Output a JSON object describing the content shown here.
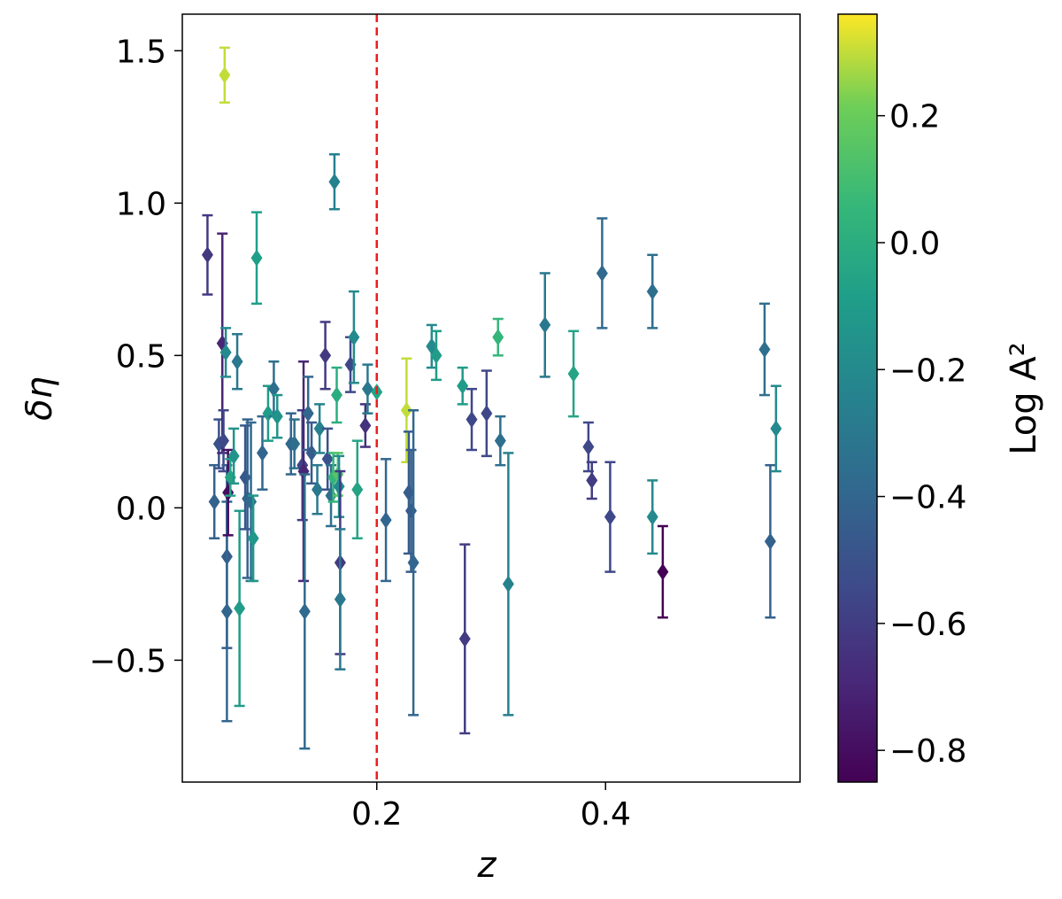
{
  "chart_data": {
    "type": "scatter",
    "title": "",
    "xlabel": "z",
    "ylabel": "δη",
    "xlim": [
      0.03,
      0.57
    ],
    "ylim": [
      -0.9,
      1.62
    ],
    "xticks": [
      0.2,
      0.4
    ],
    "xtick_labels": [
      "0.2",
      "0.4"
    ],
    "yticks": [
      -0.5,
      0.0,
      0.5,
      1.0,
      1.5
    ],
    "ytick_labels": [
      "−0.5",
      "0.0",
      "0.5",
      "1.0",
      "1.5"
    ],
    "grid": false,
    "marker": "diamond",
    "reference_line": {
      "x": 0.2,
      "style": "dashed",
      "color": "#ee1c1c"
    },
    "colorbar": {
      "label": "Log A²",
      "colormap": "viridis",
      "range": [
        -0.85,
        0.36
      ],
      "ticks": [
        0.2,
        0.0,
        -0.2,
        -0.4,
        -0.6,
        -0.8
      ],
      "tick_labels": [
        "0.2",
        "0.0",
        "−0.2",
        "−0.4",
        "−0.6",
        "−0.8"
      ]
    },
    "points": [
      {
        "x": 0.052,
        "y": 0.83,
        "err": 0.13,
        "c": -0.62
      },
      {
        "x": 0.058,
        "y": 0.02,
        "err": 0.12,
        "c": -0.42
      },
      {
        "x": 0.062,
        "y": 0.21,
        "err": 0.08,
        "c": -0.5
      },
      {
        "x": 0.065,
        "y": 0.54,
        "err": 0.36,
        "c": -0.7
      },
      {
        "x": 0.066,
        "y": 0.22,
        "err": 0.1,
        "c": -0.55
      },
      {
        "x": 0.067,
        "y": 1.42,
        "err": 0.09,
        "c": 0.3
      },
      {
        "x": 0.068,
        "y": 0.51,
        "err": 0.08,
        "c": -0.2
      },
      {
        "x": 0.069,
        "y": -0.16,
        "err": 0.3,
        "c": -0.45
      },
      {
        "x": 0.069,
        "y": -0.34,
        "err": 0.36,
        "c": -0.4
      },
      {
        "x": 0.07,
        "y": 0.05,
        "err": 0.14,
        "c": -0.8
      },
      {
        "x": 0.072,
        "y": 0.1,
        "err": 0.06,
        "c": -0.05
      },
      {
        "x": 0.075,
        "y": 0.17,
        "err": 0.09,
        "c": -0.15
      },
      {
        "x": 0.078,
        "y": 0.48,
        "err": 0.09,
        "c": -0.3
      },
      {
        "x": 0.08,
        "y": -0.33,
        "err": 0.32,
        "c": -0.1
      },
      {
        "x": 0.085,
        "y": 0.1,
        "err": 0.17,
        "c": -0.48
      },
      {
        "x": 0.087,
        "y": 0.03,
        "err": 0.26,
        "c": -0.42
      },
      {
        "x": 0.09,
        "y": 0.02,
        "err": 0.26,
        "c": -0.38
      },
      {
        "x": 0.092,
        "y": -0.1,
        "err": 0.14,
        "c": -0.12
      },
      {
        "x": 0.095,
        "y": 0.82,
        "err": 0.15,
        "c": -0.08
      },
      {
        "x": 0.1,
        "y": 0.18,
        "err": 0.12,
        "c": -0.4
      },
      {
        "x": 0.105,
        "y": 0.31,
        "err": 0.09,
        "c": -0.1
      },
      {
        "x": 0.11,
        "y": 0.39,
        "err": 0.09,
        "c": -0.35
      },
      {
        "x": 0.113,
        "y": 0.3,
        "err": 0.07,
        "c": -0.15
      },
      {
        "x": 0.125,
        "y": 0.21,
        "err": 0.1,
        "c": -0.4
      },
      {
        "x": 0.128,
        "y": 0.21,
        "err": 0.08,
        "c": -0.35
      },
      {
        "x": 0.135,
        "y": 0.14,
        "err": 0.18,
        "c": -0.58
      },
      {
        "x": 0.136,
        "y": 0.12,
        "err": 0.36,
        "c": -0.7
      },
      {
        "x": 0.137,
        "y": -0.34,
        "err": 0.45,
        "c": -0.38
      },
      {
        "x": 0.14,
        "y": 0.31,
        "err": 0.12,
        "c": -0.4
      },
      {
        "x": 0.143,
        "y": 0.18,
        "err": 0.1,
        "c": -0.45
      },
      {
        "x": 0.148,
        "y": 0.06,
        "err": 0.08,
        "c": -0.3
      },
      {
        "x": 0.15,
        "y": 0.26,
        "err": 0.08,
        "c": -0.25
      },
      {
        "x": 0.155,
        "y": 0.5,
        "err": 0.11,
        "c": -0.62
      },
      {
        "x": 0.157,
        "y": 0.16,
        "err": 0.1,
        "c": -0.5
      },
      {
        "x": 0.16,
        "y": 0.04,
        "err": 0.1,
        "c": -0.35
      },
      {
        "x": 0.162,
        "y": 0.1,
        "err": 0.08,
        "c": 0.05
      },
      {
        "x": 0.163,
        "y": 1.07,
        "err": 0.09,
        "c": -0.25
      },
      {
        "x": 0.165,
        "y": 0.37,
        "err": 0.09,
        "c": 0.0
      },
      {
        "x": 0.166,
        "y": 0.11,
        "err": 0.07,
        "c": 0.15
      },
      {
        "x": 0.167,
        "y": 0.07,
        "err": 0.1,
        "c": -0.2
      },
      {
        "x": 0.168,
        "y": -0.18,
        "err": 0.3,
        "c": -0.62
      },
      {
        "x": 0.168,
        "y": -0.3,
        "err": 0.23,
        "c": -0.3
      },
      {
        "x": 0.177,
        "y": 0.47,
        "err": 0.09,
        "c": -0.55
      },
      {
        "x": 0.18,
        "y": 0.56,
        "err": 0.15,
        "c": -0.2
      },
      {
        "x": 0.183,
        "y": 0.06,
        "err": 0.16,
        "c": -0.05
      },
      {
        "x": 0.19,
        "y": 0.27,
        "err": 0.07,
        "c": -0.65
      },
      {
        "x": 0.192,
        "y": 0.39,
        "err": 0.08,
        "c": -0.3
      },
      {
        "x": 0.2,
        "y": 0.38,
        "err": 0.0,
        "c": -0.05
      },
      {
        "x": 0.208,
        "y": -0.04,
        "err": 0.2,
        "c": -0.4
      },
      {
        "x": 0.226,
        "y": 0.32,
        "err": 0.17,
        "c": 0.3
      },
      {
        "x": 0.228,
        "y": 0.05,
        "err": 0.2,
        "c": -0.45
      },
      {
        "x": 0.23,
        "y": -0.01,
        "err": 0.2,
        "c": -0.45
      },
      {
        "x": 0.232,
        "y": -0.18,
        "err": 0.5,
        "c": -0.4
      },
      {
        "x": 0.248,
        "y": 0.53,
        "err": 0.07,
        "c": -0.2
      },
      {
        "x": 0.252,
        "y": 0.5,
        "err": 0.08,
        "c": -0.1
      },
      {
        "x": 0.275,
        "y": 0.4,
        "err": 0.06,
        "c": -0.1
      },
      {
        "x": 0.277,
        "y": -0.43,
        "err": 0.31,
        "c": -0.6
      },
      {
        "x": 0.283,
        "y": 0.29,
        "err": 0.1,
        "c": -0.55
      },
      {
        "x": 0.296,
        "y": 0.31,
        "err": 0.14,
        "c": -0.55
      },
      {
        "x": 0.306,
        "y": 0.56,
        "err": 0.06,
        "c": 0.05
      },
      {
        "x": 0.308,
        "y": 0.22,
        "err": 0.08,
        "c": -0.35
      },
      {
        "x": 0.315,
        "y": -0.25,
        "err": 0.43,
        "c": -0.25
      },
      {
        "x": 0.347,
        "y": 0.6,
        "err": 0.17,
        "c": -0.3
      },
      {
        "x": 0.372,
        "y": 0.44,
        "err": 0.14,
        "c": -0.05
      },
      {
        "x": 0.385,
        "y": 0.2,
        "err": 0.08,
        "c": -0.55
      },
      {
        "x": 0.388,
        "y": 0.09,
        "err": 0.06,
        "c": -0.6
      },
      {
        "x": 0.397,
        "y": 0.77,
        "err": 0.18,
        "c": -0.38
      },
      {
        "x": 0.404,
        "y": -0.03,
        "err": 0.18,
        "c": -0.55
      },
      {
        "x": 0.441,
        "y": 0.71,
        "err": 0.12,
        "c": -0.35
      },
      {
        "x": 0.441,
        "y": -0.03,
        "err": 0.12,
        "c": -0.2
      },
      {
        "x": 0.45,
        "y": -0.21,
        "err": 0.15,
        "c": -0.85
      },
      {
        "x": 0.539,
        "y": 0.52,
        "err": 0.15,
        "c": -0.35
      },
      {
        "x": 0.544,
        "y": -0.11,
        "err": 0.25,
        "c": -0.42
      },
      {
        "x": 0.549,
        "y": 0.26,
        "err": 0.14,
        "c": -0.2
      }
    ]
  }
}
